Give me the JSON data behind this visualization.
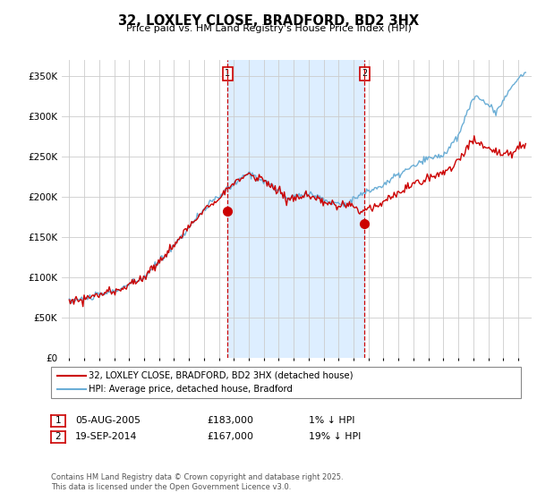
{
  "title": "32, LOXLEY CLOSE, BRADFORD, BD2 3HX",
  "subtitle": "Price paid vs. HM Land Registry's House Price Index (HPI)",
  "yticks": [
    0,
    50000,
    100000,
    150000,
    200000,
    250000,
    300000,
    350000
  ],
  "ytick_labels": [
    "£0",
    "£50K",
    "£100K",
    "£150K",
    "£200K",
    "£250K",
    "£300K",
    "£350K"
  ],
  "legend_line1": "32, LOXLEY CLOSE, BRADFORD, BD2 3HX (detached house)",
  "legend_line2": "HPI: Average price, detached house, Bradford",
  "sale1_date": "05-AUG-2005",
  "sale1_price": "£183,000",
  "sale1_note": "1% ↓ HPI",
  "sale2_date": "19-SEP-2014",
  "sale2_price": "£167,000",
  "sale2_note": "19% ↓ HPI",
  "footer": "Contains HM Land Registry data © Crown copyright and database right 2025.\nThis data is licensed under the Open Government Licence v3.0.",
  "hpi_color": "#6baed6",
  "price_color": "#cc0000",
  "shade_color": "#ddeeff",
  "sale1_x": 2005.59,
  "sale1_y": 183000,
  "sale2_x": 2014.72,
  "sale2_y": 167000,
  "xmin": 1994.5,
  "xmax": 2025.9,
  "ymin": 0,
  "ymax": 370000,
  "background_color": "#ffffff",
  "grid_color": "#cccccc"
}
